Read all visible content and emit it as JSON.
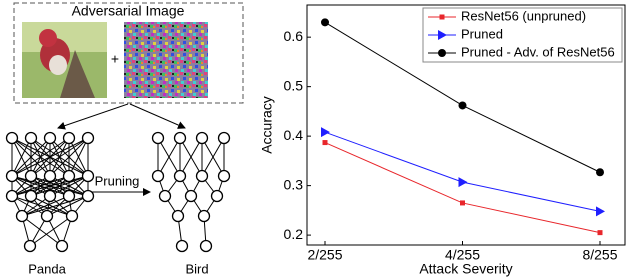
{
  "diagram": {
    "title": "Adversarial Image",
    "plus": "+",
    "arrow_label": "Pruning",
    "left_label": "Panda",
    "right_label": "Bird"
  },
  "chart_data": {
    "type": "line",
    "x_label": "Attack Severity",
    "y_label": "Accuracy",
    "categories": [
      "2/255",
      "4/255",
      "8/255"
    ],
    "series": [
      {
        "name": "ResNet56 (unpruned)",
        "color": "#e8262b",
        "marker": "square",
        "values": [
          0.387,
          0.265,
          0.205
        ]
      },
      {
        "name": "Pruned",
        "color": "#1f1fff",
        "marker": "triangle",
        "values": [
          0.408,
          0.307,
          0.248
        ]
      },
      {
        "name": "Pruned - Adv. of ResNet56",
        "color": "#000000",
        "marker": "circle",
        "values": [
          0.63,
          0.462,
          0.327
        ]
      }
    ],
    "ylim": [
      0.18,
      0.665
    ],
    "yticks": [
      0.2,
      0.3,
      0.4,
      0.5,
      0.6
    ],
    "grid": false,
    "legend": "upper right"
  }
}
